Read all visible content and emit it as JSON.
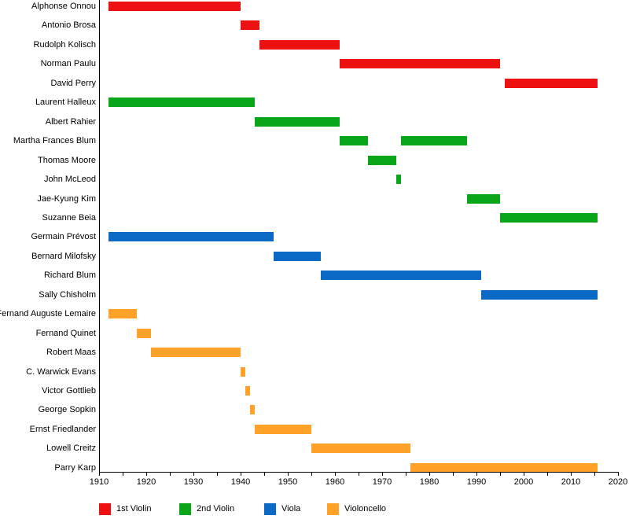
{
  "chart_data": {
    "type": "gantt",
    "variant": "horizontal range bars (membership timeline by instrument)",
    "title": "",
    "x_axis": {
      "min": 1910,
      "max": 2020,
      "major_tick_step": 10,
      "minor_tick_step": 5,
      "tick_labels": [
        "1910",
        "1920",
        "1930",
        "1940",
        "1950",
        "1960",
        "1970",
        "1980",
        "1990",
        "2000",
        "2010",
        "2020"
      ]
    },
    "present_end": 2015.7,
    "grid": false,
    "legend_position": "bottom",
    "legend": [
      {
        "label": "1st Violin",
        "color": "#ee1111"
      },
      {
        "label": "2nd Violin",
        "color": "#0aa619"
      },
      {
        "label": "Viola",
        "color": "#0b69c6"
      },
      {
        "label": "Violoncello",
        "color": "#ffa227"
      }
    ],
    "rows": [
      {
        "name": "Alphonse Onnou",
        "role": "1st Violin",
        "bars": [
          {
            "start": 1912,
            "end": 1940
          }
        ]
      },
      {
        "name": "Antonio Brosa",
        "role": "1st Violin",
        "bars": [
          {
            "start": 1940,
            "end": 1944
          }
        ]
      },
      {
        "name": "Rudolph Kolisch",
        "role": "1st Violin",
        "bars": [
          {
            "start": 1944,
            "end": 1961
          }
        ]
      },
      {
        "name": "Norman Paulu",
        "role": "1st Violin",
        "bars": [
          {
            "start": 1961,
            "end": 1995
          }
        ]
      },
      {
        "name": "David Perry",
        "role": "1st Violin",
        "bars": [
          {
            "start": 1996,
            "end": "present"
          }
        ]
      },
      {
        "name": "Laurent Halleux",
        "role": "2nd Violin",
        "bars": [
          {
            "start": 1912,
            "end": 1943
          }
        ]
      },
      {
        "name": "Albert Rahier",
        "role": "2nd Violin",
        "bars": [
          {
            "start": 1943,
            "end": 1961
          }
        ]
      },
      {
        "name": "Martha Frances Blum",
        "role": "2nd Violin",
        "bars": [
          {
            "start": 1961,
            "end": 1967
          },
          {
            "start": 1974,
            "end": 1988
          }
        ]
      },
      {
        "name": "Thomas Moore",
        "role": "2nd Violin",
        "bars": [
          {
            "start": 1967,
            "end": 1973
          }
        ]
      },
      {
        "name": "John McLeod",
        "role": "2nd Violin",
        "bars": [
          {
            "start": 1973,
            "end": 1974
          }
        ]
      },
      {
        "name": "Jae-Kyung Kim",
        "role": "2nd Violin",
        "bars": [
          {
            "start": 1988,
            "end": 1995
          }
        ]
      },
      {
        "name": "Suzanne Beia",
        "role": "2nd Violin",
        "bars": [
          {
            "start": 1995,
            "end": "present"
          }
        ]
      },
      {
        "name": "Germain Prévost",
        "role": "Viola",
        "bars": [
          {
            "start": 1912,
            "end": 1947
          }
        ]
      },
      {
        "name": "Bernard Milofsky",
        "role": "Viola",
        "bars": [
          {
            "start": 1947,
            "end": 1957
          }
        ]
      },
      {
        "name": "Richard Blum",
        "role": "Viola",
        "bars": [
          {
            "start": 1957,
            "end": 1991
          }
        ]
      },
      {
        "name": "Sally Chisholm",
        "role": "Viola",
        "bars": [
          {
            "start": 1991,
            "end": "present"
          }
        ]
      },
      {
        "name": "Fernand Auguste Lemaire",
        "role": "Violoncello",
        "bars": [
          {
            "start": 1912,
            "end": 1918
          }
        ]
      },
      {
        "name": "Fernand Quinet",
        "role": "Violoncello",
        "bars": [
          {
            "start": 1918,
            "end": 1921
          }
        ]
      },
      {
        "name": "Robert Maas",
        "role": "Violoncello",
        "bars": [
          {
            "start": 1921,
            "end": 1940
          }
        ]
      },
      {
        "name": "C. Warwick Evans",
        "role": "Violoncello",
        "bars": [
          {
            "start": 1940,
            "end": 1941
          }
        ]
      },
      {
        "name": "Victor Gottlieb",
        "role": "Violoncello",
        "bars": [
          {
            "start": 1941,
            "end": 1942
          }
        ]
      },
      {
        "name": "George Sopkin",
        "role": "Violoncello",
        "bars": [
          {
            "start": 1942,
            "end": 1943
          }
        ]
      },
      {
        "name": "Ernst Friedlander",
        "role": "Violoncello",
        "bars": [
          {
            "start": 1943,
            "end": 1955
          }
        ]
      },
      {
        "name": "Lowell Creitz",
        "role": "Violoncello",
        "bars": [
          {
            "start": 1955,
            "end": 1976
          }
        ]
      },
      {
        "name": "Parry Karp",
        "role": "Violoncello",
        "bars": [
          {
            "start": 1976,
            "end": "present"
          }
        ]
      }
    ]
  }
}
